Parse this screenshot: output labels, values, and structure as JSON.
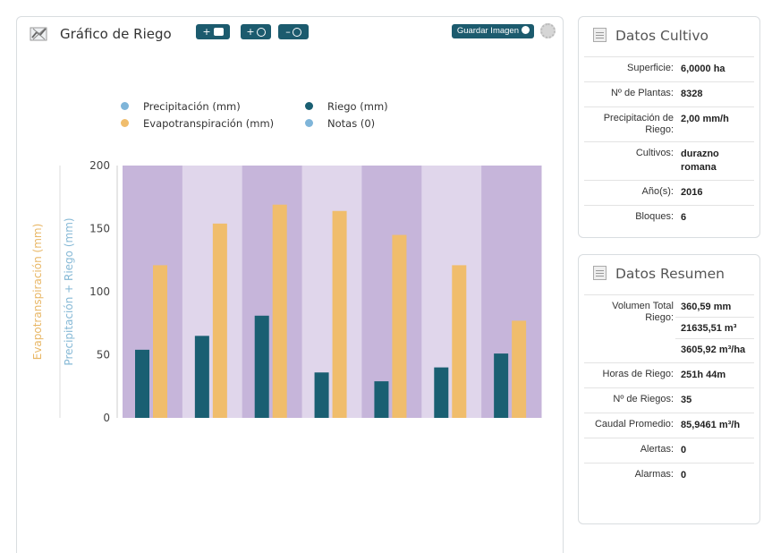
{
  "chart_panel": {
    "title": "Gráfico de Riego",
    "btn_add_note": "+",
    "btn_zoom_in": "+",
    "btn_zoom_out": "–",
    "save_label": "Guardar Imagen",
    "legend": [
      {
        "label": "Precipitación (mm)",
        "color": "#7fb5d9"
      },
      {
        "label": "Riego (mm)",
        "color": "#1a5f72"
      },
      {
        "label": "Evapotranspiración (mm)",
        "color": "#f0bd6c"
      },
      {
        "label": "Notas (0)",
        "color": "#7fb5d9"
      }
    ]
  },
  "chart_data": {
    "type": "bar",
    "categories": [
      "",
      "",
      "",
      "",
      "",
      "",
      ""
    ],
    "series": [
      {
        "name": "Riego (mm)",
        "color": "#1a5f72",
        "values": [
          54,
          65,
          81,
          36,
          29,
          40,
          51
        ]
      },
      {
        "name": "Evapotranspiración (mm)",
        "color": "#f0bd6c",
        "values": [
          121,
          154,
          169,
          164,
          145,
          121,
          77
        ]
      }
    ],
    "ylabel_left": "Evapotranspiración (mm)",
    "ylabel_right": "Precipitación + Riego (mm)",
    "yticks": [
      "0",
      "50",
      "100",
      "150",
      "200"
    ],
    "ylim": [
      0,
      200
    ],
    "band_colors": [
      "#c6b5da",
      "#e0d6eb"
    ]
  },
  "cultivo": {
    "title": "Datos Cultivo",
    "rows": [
      {
        "label": "Superficie:",
        "values": [
          "6,0000 ha"
        ]
      },
      {
        "label": "Nº de Plantas:",
        "values": [
          "8328"
        ]
      },
      {
        "label": "Precipitación de Riego:",
        "values": [
          "2,00 mm/h"
        ]
      },
      {
        "label": "Cultivos:",
        "values": [
          "durazno",
          "romana"
        ]
      },
      {
        "label": "Año(s):",
        "values": [
          "2016"
        ]
      },
      {
        "label": "Bloques:",
        "values": [
          "6"
        ]
      }
    ]
  },
  "resumen": {
    "title": "Datos Resumen",
    "rows": [
      {
        "label": "Volumen Total Riego:",
        "values": [
          "360,59 mm",
          "21635,51 m³",
          "3605,92 m³/ha"
        ]
      },
      {
        "label": "Horas de Riego:",
        "values": [
          "251h 44m"
        ]
      },
      {
        "label": "Nº de Riegos:",
        "values": [
          "35"
        ]
      },
      {
        "label": "Caudal Promedio:",
        "values": [
          "85,9461 m³/h"
        ]
      },
      {
        "label": "Alertas:",
        "values": [
          "0"
        ]
      },
      {
        "label": "Alarmas:",
        "values": [
          "0"
        ]
      }
    ]
  }
}
